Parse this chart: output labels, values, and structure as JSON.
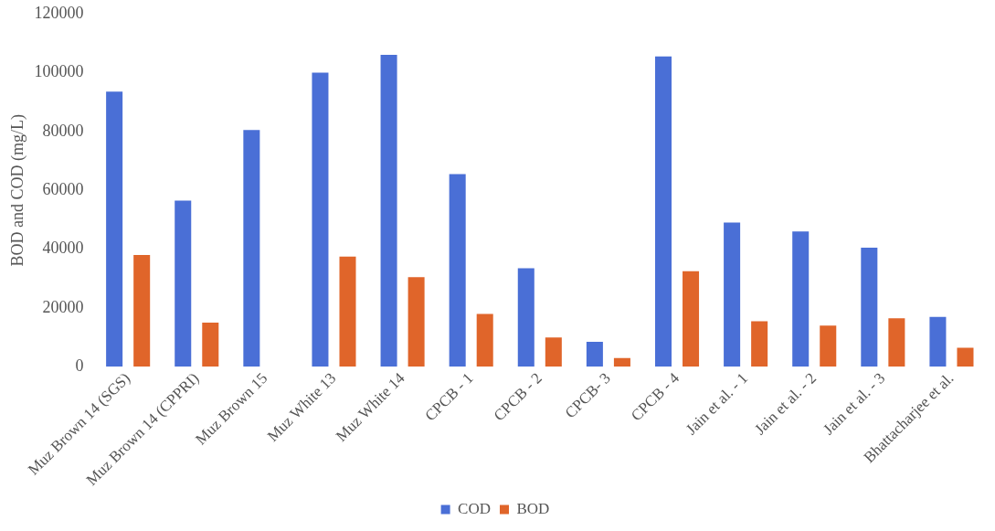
{
  "chart_data": {
    "type": "bar",
    "ylabel": "BOD and COD (mg/L)",
    "categories": [
      "Muz Brown 14 (SGS)",
      "Muz Brown 14 (CPPRI)",
      "Muz Brown 15",
      "Muz White 13",
      "Muz White 14",
      "CPCB - 1",
      "CPCB - 2",
      "CPCB- 3",
      "CPCB - 4",
      "Jain et al. - 1",
      "Jain et al. - 2",
      "Jain et al. - 3",
      "Bhattacharjee et al."
    ],
    "series": [
      {
        "name": "COD",
        "color": "#4a6fd6",
        "values": [
          93500,
          56500,
          80500,
          100000,
          106000,
          65500,
          33500,
          8500,
          105500,
          49000,
          46000,
          40500,
          17000
        ]
      },
      {
        "name": "BOD",
        "color": "#e0652a",
        "values": [
          38000,
          15000,
          null,
          37500,
          30500,
          18000,
          10000,
          3000,
          32500,
          15500,
          14000,
          16500,
          6500
        ]
      }
    ],
    "ylim": [
      0,
      120000
    ],
    "yticks": [
      0,
      20000,
      40000,
      60000,
      80000,
      100000,
      120000
    ],
    "legend": "bottom"
  }
}
